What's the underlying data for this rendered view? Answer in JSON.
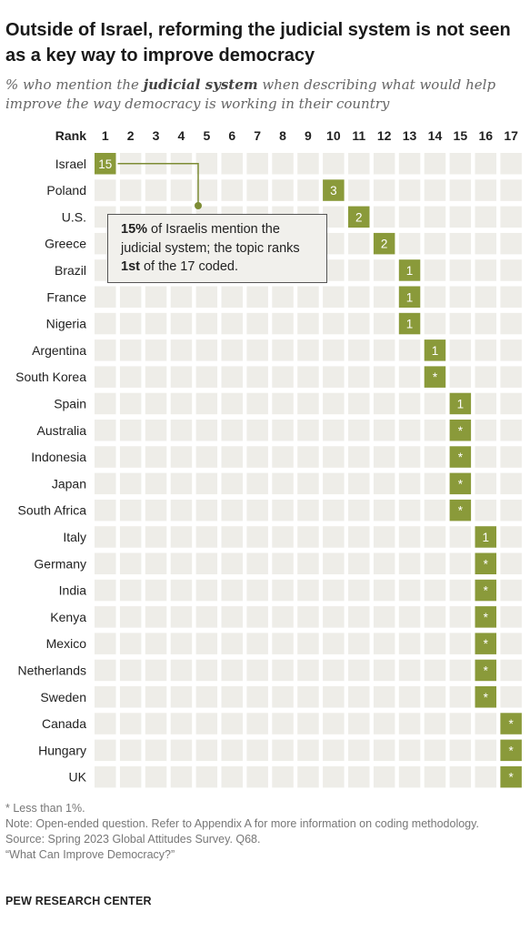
{
  "header": {
    "title": "Outside of Israel, reforming the judicial system is not seen as a key way to improve democracy",
    "subtitle_pre": "% who mention the ",
    "subtitle_em": "judicial system",
    "subtitle_post": " when describing what would help improve the way democracy is working in their country"
  },
  "annotation": {
    "pct": "15%",
    "text_a": " of Israelis mention the judicial system; the topic ranks ",
    "rank": "1st",
    "text_b": " of the 17 coded."
  },
  "chart_data": {
    "type": "heatmap",
    "rank_label": "Rank",
    "ranks": [
      "1",
      "2",
      "3",
      "4",
      "5",
      "6",
      "7",
      "8",
      "9",
      "10",
      "11",
      "12",
      "13",
      "14",
      "15",
      "16",
      "17"
    ],
    "rows": [
      {
        "country": "Israel",
        "rank": 1,
        "value": "15"
      },
      {
        "country": "Poland",
        "rank": 10,
        "value": "3"
      },
      {
        "country": "U.S.",
        "rank": 11,
        "value": "2"
      },
      {
        "country": "Greece",
        "rank": 12,
        "value": "2"
      },
      {
        "country": "Brazil",
        "rank": 13,
        "value": "1"
      },
      {
        "country": "France",
        "rank": 13,
        "value": "1"
      },
      {
        "country": "Nigeria",
        "rank": 13,
        "value": "1"
      },
      {
        "country": "Argentina",
        "rank": 14,
        "value": "1"
      },
      {
        "country": "South Korea",
        "rank": 14,
        "value": "*"
      },
      {
        "country": "Spain",
        "rank": 15,
        "value": "1"
      },
      {
        "country": "Australia",
        "rank": 15,
        "value": "*"
      },
      {
        "country": "Indonesia",
        "rank": 15,
        "value": "*"
      },
      {
        "country": "Japan",
        "rank": 15,
        "value": "*"
      },
      {
        "country": "South Africa",
        "rank": 15,
        "value": "*"
      },
      {
        "country": "Italy",
        "rank": 16,
        "value": "1"
      },
      {
        "country": "Germany",
        "rank": 16,
        "value": "*"
      },
      {
        "country": "India",
        "rank": 16,
        "value": "*"
      },
      {
        "country": "Kenya",
        "rank": 16,
        "value": "*"
      },
      {
        "country": "Mexico",
        "rank": 16,
        "value": "*"
      },
      {
        "country": "Netherlands",
        "rank": 16,
        "value": "*"
      },
      {
        "country": "Sweden",
        "rank": 16,
        "value": "*"
      },
      {
        "country": "Canada",
        "rank": 17,
        "value": "*"
      },
      {
        "country": "Hungary",
        "rank": 17,
        "value": "*"
      },
      {
        "country": "UK",
        "rank": 17,
        "value": "*"
      }
    ],
    "colors": {
      "filled": "#8a9a3a",
      "empty": "#eeede8",
      "connector": "#7d8c35"
    }
  },
  "footer": {
    "note1": "* Less than 1%.",
    "note2": "Note: Open-ended question. Refer to Appendix A for more information on coding methodology.",
    "source": "Source: Spring 2023 Global Attitudes Survey. Q68.",
    "report": "“What Can Improve Democracy?”",
    "brand": "PEW RESEARCH CENTER"
  }
}
